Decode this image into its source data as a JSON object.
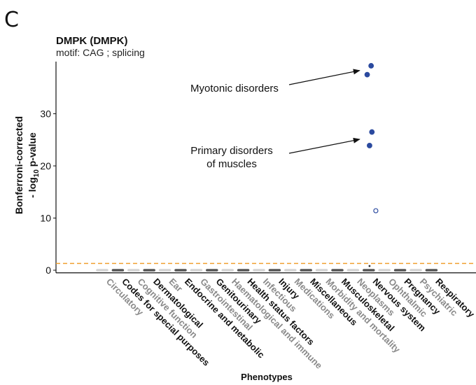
{
  "panel_letter": "C",
  "colors": {
    "point_fill": "#2b4a9f",
    "point_stroke": "#2b4a9f",
    "threshold": "#f0a030",
    "cat_dark": "#555555",
    "cat_light": "#d4d4d4",
    "label_dark": "#111111",
    "label_light": "#8a8a8a"
  },
  "chart_data": {
    "type": "scatter",
    "title": "DMPK (DMPK)",
    "subtitle": "motif: CAG ; splicing",
    "xlabel": "Phenotypes",
    "ylabel_line1": "Bonferroni-corrected",
    "ylabel_line2_pre": "- log",
    "ylabel_line2_sub": "10",
    "ylabel_line2_post": "  p-value",
    "ylim": [
      -0.5,
      40
    ],
    "yticks": [
      "0",
      "10",
      "20",
      "30"
    ],
    "threshold": 1.3,
    "categories": [
      "Circulatory",
      "Codes for special purposes",
      "Cognitive function",
      "Dermatological",
      "Ear",
      "Endocrine and metabolic",
      "Gastrointestinal",
      "Genitourinary",
      "Haematological and immune",
      "Health status factors",
      "Infectious",
      "Injury",
      "Medications",
      "Miscellaneous",
      "Morbidity and mortality",
      "Musculoskeletal",
      "Neoplasms",
      "Nervous system",
      "Ophthalmic",
      "Pregnancy",
      "Psychiatric",
      "Respiratory"
    ],
    "points": [
      {
        "category": "Nervous system",
        "y": 39.2,
        "offset": 0.15,
        "filled": true
      },
      {
        "category": "Nervous system",
        "y": 37.5,
        "offset": -0.1,
        "filled": true
      },
      {
        "category": "Nervous system",
        "y": 26.5,
        "offset": 0.2,
        "filled": true
      },
      {
        "category": "Nervous system",
        "y": 23.9,
        "offset": 0.05,
        "filled": true
      },
      {
        "category": "Nervous system",
        "y": 11.4,
        "offset": 0.45,
        "filled": false
      },
      {
        "category": "Nervous system",
        "y": 0.8,
        "offset": 0.05,
        "filled": true,
        "small": true
      }
    ],
    "annotations": [
      {
        "lines": [
          "Myotonic disorders"
        ],
        "target_y": 38.3
      },
      {
        "lines": [
          "Primary disorders",
          "of muscles"
        ],
        "target_y": 25.1
      }
    ]
  }
}
